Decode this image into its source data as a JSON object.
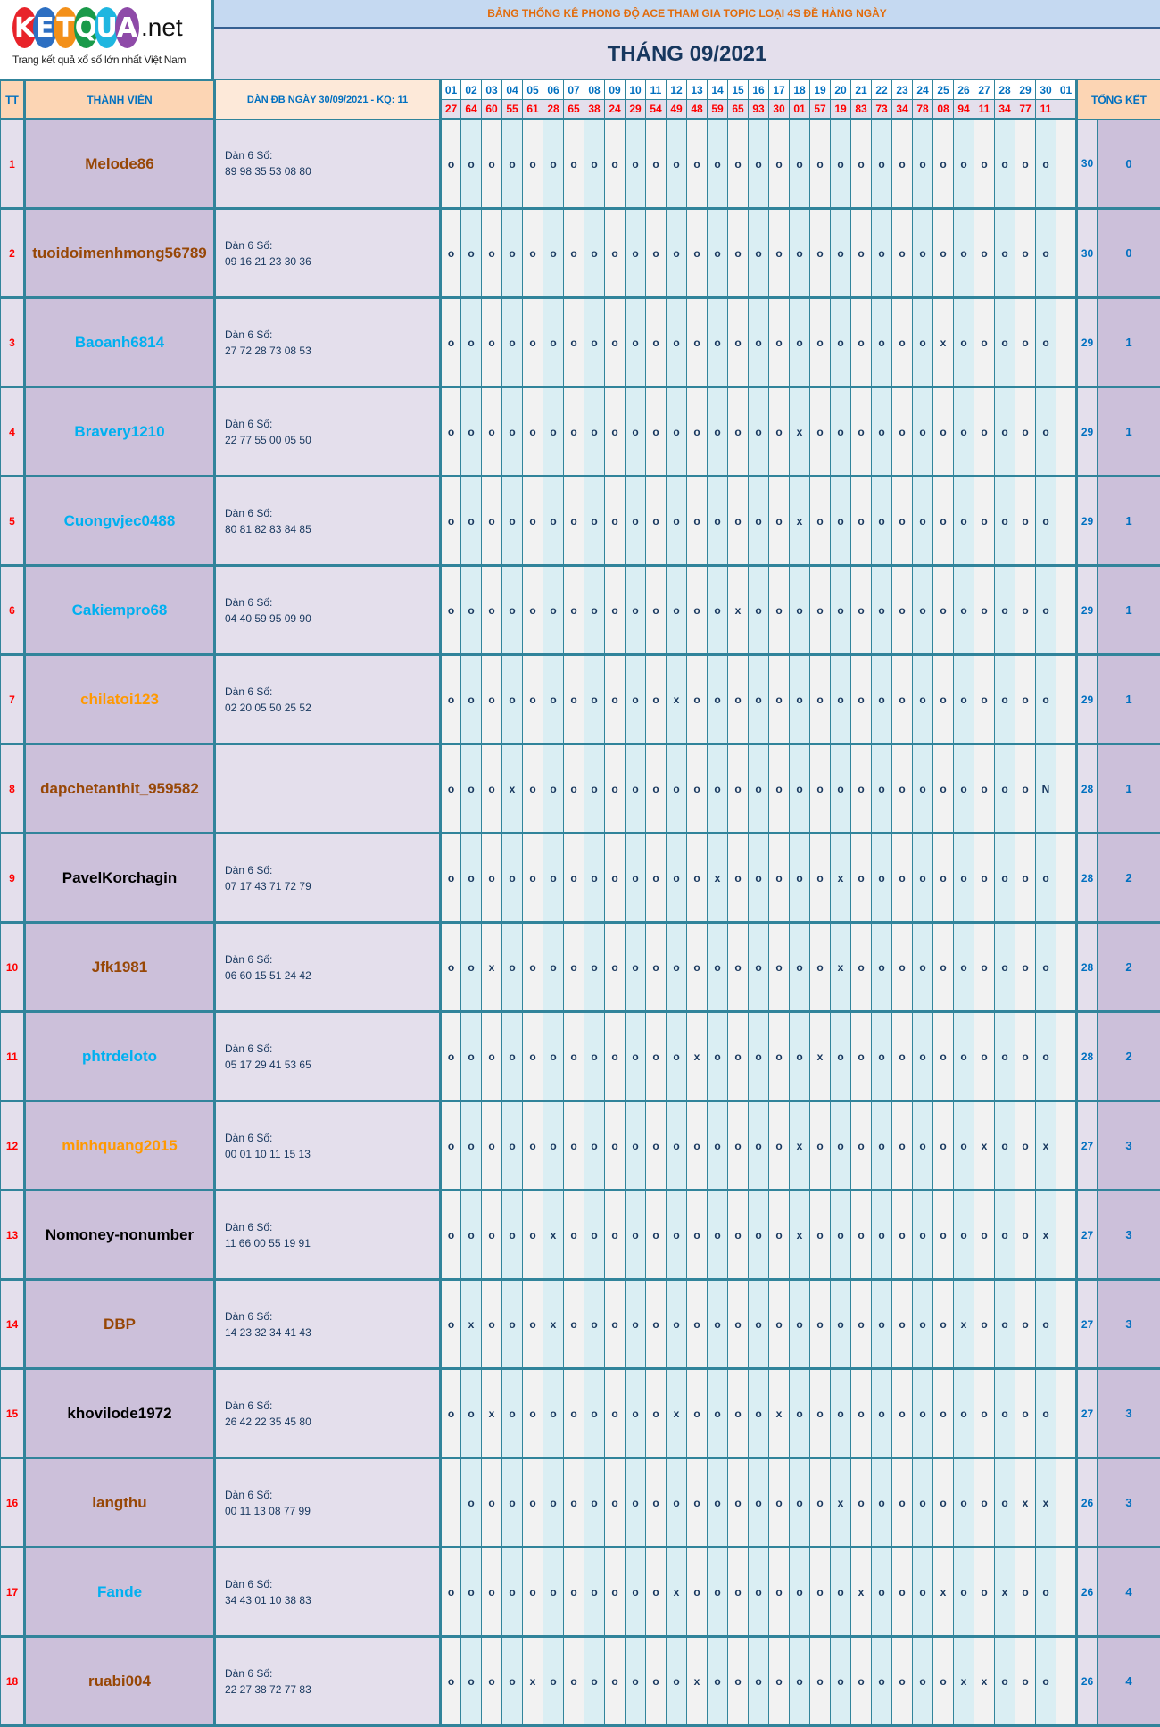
{
  "logo": {
    "letters": [
      "K",
      "E",
      "T",
      "Q",
      "U",
      "A"
    ],
    "colors": [
      "#e8232a",
      "#2d6fc2",
      "#f39019",
      "#1a9a4a",
      "#1fb6e0",
      "#8e4aa8"
    ],
    "suffix": ".net",
    "tagline": "Trang kết quả xổ số lớn nhất Việt Nam"
  },
  "header": {
    "title": "BẢNG THỐNG KÊ PHONG ĐỘ ACE THAM GIA TOPIC LOẠI 4S ĐỀ HÀNG NGÀY",
    "month": "THÁNG 09/2021"
  },
  "columns": {
    "tt": "TT",
    "member": "THÀNH VIÊN",
    "dan": "DÀN ĐB NGÀY 30/09/2021 - KQ: 11",
    "summary": "TỔNG KẾT"
  },
  "days": [
    "01",
    "02",
    "03",
    "04",
    "05",
    "06",
    "07",
    "08",
    "09",
    "10",
    "11",
    "12",
    "13",
    "14",
    "15",
    "16",
    "17",
    "18",
    "19",
    "20",
    "21",
    "22",
    "23",
    "24",
    "25",
    "26",
    "27",
    "28",
    "29",
    "30",
    "01"
  ],
  "results": [
    "27",
    "64",
    "60",
    "55",
    "61",
    "28",
    "65",
    "38",
    "24",
    "29",
    "54",
    "49",
    "48",
    "59",
    "65",
    "93",
    "30",
    "01",
    "57",
    "19",
    "83",
    "73",
    "34",
    "78",
    "08",
    "94",
    "11",
    "34",
    "77",
    "11",
    ""
  ],
  "colors": {
    "border": "#31849b",
    "brown": "#974706",
    "cyan": "#00b0f0",
    "orange": "#ff9900",
    "black": "#000000",
    "tt_red": "#ff0000",
    "count_blue": "#0070c0"
  },
  "rows": [
    {
      "tt": "1",
      "name": "Melode86",
      "name_color": "#974706",
      "dan_label": "Dàn 6 Số:",
      "dan_numbers": "89 98 35 53 08 80",
      "marks": [
        "o",
        "o",
        "o",
        "o",
        "o",
        "o",
        "o",
        "o",
        "o",
        "o",
        "o",
        "o",
        "o",
        "o",
        "o",
        "o",
        "o",
        "o",
        "o",
        "o",
        "o",
        "o",
        "o",
        "o",
        "o",
        "o",
        "o",
        "o",
        "o",
        "o",
        ""
      ],
      "count": "30",
      "total": "0"
    },
    {
      "tt": "2",
      "name": "tuoidoimenhmong56789",
      "name_color": "#974706",
      "dan_label": "Dàn 6 Số:",
      "dan_numbers": "09 16 21 23 30 36",
      "marks": [
        "o",
        "o",
        "o",
        "o",
        "o",
        "o",
        "o",
        "o",
        "o",
        "o",
        "o",
        "o",
        "o",
        "o",
        "o",
        "o",
        "o",
        "o",
        "o",
        "o",
        "o",
        "o",
        "o",
        "o",
        "o",
        "o",
        "o",
        "o",
        "o",
        "o",
        ""
      ],
      "count": "30",
      "total": "0"
    },
    {
      "tt": "3",
      "name": "Baoanh6814",
      "name_color": "#00b0f0",
      "dan_label": "Dàn 6 Số:",
      "dan_numbers": "27 72 28 73 08 53",
      "marks": [
        "o",
        "o",
        "o",
        "o",
        "o",
        "o",
        "o",
        "o",
        "o",
        "o",
        "o",
        "o",
        "o",
        "o",
        "o",
        "o",
        "o",
        "o",
        "o",
        "o",
        "o",
        "o",
        "o",
        "o",
        "x",
        "o",
        "o",
        "o",
        "o",
        "o",
        ""
      ],
      "count": "29",
      "total": "1"
    },
    {
      "tt": "4",
      "name": "Bravery1210",
      "name_color": "#00b0f0",
      "dan_label": "Dàn 6 Số:",
      "dan_numbers": "22 77 55 00 05 50",
      "marks": [
        "o",
        "o",
        "o",
        "o",
        "o",
        "o",
        "o",
        "o",
        "o",
        "o",
        "o",
        "o",
        "o",
        "o",
        "o",
        "o",
        "o",
        "x",
        "o",
        "o",
        "o",
        "o",
        "o",
        "o",
        "o",
        "o",
        "o",
        "o",
        "o",
        "o",
        ""
      ],
      "count": "29",
      "total": "1"
    },
    {
      "tt": "5",
      "name": "Cuongvjec0488",
      "name_color": "#00b0f0",
      "dan_label": "Dàn 6 Số:",
      "dan_numbers": "80 81 82 83 84 85",
      "marks": [
        "o",
        "o",
        "o",
        "o",
        "o",
        "o",
        "o",
        "o",
        "o",
        "o",
        "o",
        "o",
        "o",
        "o",
        "o",
        "o",
        "o",
        "x",
        "o",
        "o",
        "o",
        "o",
        "o",
        "o",
        "o",
        "o",
        "o",
        "o",
        "o",
        "o",
        ""
      ],
      "count": "29",
      "total": "1"
    },
    {
      "tt": "6",
      "name": "Cakiempro68",
      "name_color": "#00b0f0",
      "dan_label": "Dàn 6 Số:",
      "dan_numbers": "04 40 59 95 09 90",
      "marks": [
        "o",
        "o",
        "o",
        "o",
        "o",
        "o",
        "o",
        "o",
        "o",
        "o",
        "o",
        "o",
        "o",
        "o",
        "x",
        "o",
        "o",
        "o",
        "o",
        "o",
        "o",
        "o",
        "o",
        "o",
        "o",
        "o",
        "o",
        "o",
        "o",
        "o",
        ""
      ],
      "count": "29",
      "total": "1"
    },
    {
      "tt": "7",
      "name": "chilatoi123",
      "name_color": "#ff9900",
      "dan_label": "Dàn 6 Số:",
      "dan_numbers": "02 20 05 50 25 52",
      "marks": [
        "o",
        "o",
        "o",
        "o",
        "o",
        "o",
        "o",
        "o",
        "o",
        "o",
        "o",
        "x",
        "o",
        "o",
        "o",
        "o",
        "o",
        "o",
        "o",
        "o",
        "o",
        "o",
        "o",
        "o",
        "o",
        "o",
        "o",
        "o",
        "o",
        "o",
        ""
      ],
      "count": "29",
      "total": "1"
    },
    {
      "tt": "8",
      "name": "dapchetanthit_959582",
      "name_color": "#974706",
      "dan_label": "",
      "dan_numbers": "",
      "marks": [
        "o",
        "o",
        "o",
        "x",
        "o",
        "o",
        "o",
        "o",
        "o",
        "o",
        "o",
        "o",
        "o",
        "o",
        "o",
        "o",
        "o",
        "o",
        "o",
        "o",
        "o",
        "o",
        "o",
        "o",
        "o",
        "o",
        "o",
        "o",
        "o",
        "N",
        ""
      ],
      "count": "28",
      "total": "1"
    },
    {
      "tt": "9",
      "name": "PavelKorchagin",
      "name_color": "#000000",
      "dan_label": "Dàn 6 Số:",
      "dan_numbers": "07 17 43 71 72 79",
      "marks": [
        "o",
        "o",
        "o",
        "o",
        "o",
        "o",
        "o",
        "o",
        "o",
        "o",
        "o",
        "o",
        "o",
        "x",
        "o",
        "o",
        "o",
        "o",
        "o",
        "x",
        "o",
        "o",
        "o",
        "o",
        "o",
        "o",
        "o",
        "o",
        "o",
        "o",
        ""
      ],
      "count": "28",
      "total": "2"
    },
    {
      "tt": "10",
      "name": "Jfk1981",
      "name_color": "#974706",
      "dan_label": "Dàn 6 Số:",
      "dan_numbers": "06 60 15 51 24 42",
      "marks": [
        "o",
        "o",
        "x",
        "o",
        "o",
        "o",
        "o",
        "o",
        "o",
        "o",
        "o",
        "o",
        "o",
        "o",
        "o",
        "o",
        "o",
        "o",
        "o",
        "x",
        "o",
        "o",
        "o",
        "o",
        "o",
        "o",
        "o",
        "o",
        "o",
        "o",
        ""
      ],
      "count": "28",
      "total": "2"
    },
    {
      "tt": "11",
      "name": "phtrdeloto",
      "name_color": "#00b0f0",
      "dan_label": "Dàn 6 Số:",
      "dan_numbers": "05 17 29 41 53 65",
      "marks": [
        "o",
        "o",
        "o",
        "o",
        "o",
        "o",
        "o",
        "o",
        "o",
        "o",
        "o",
        "o",
        "x",
        "o",
        "o",
        "o",
        "o",
        "o",
        "x",
        "o",
        "o",
        "o",
        "o",
        "o",
        "o",
        "o",
        "o",
        "o",
        "o",
        "o",
        ""
      ],
      "count": "28",
      "total": "2"
    },
    {
      "tt": "12",
      "name": "minhquang2015",
      "name_color": "#ff9900",
      "dan_label": "Dàn 6 Số:",
      "dan_numbers": "00 01 10 11 15 13",
      "marks": [
        "o",
        "o",
        "o",
        "o",
        "o",
        "o",
        "o",
        "o",
        "o",
        "o",
        "o",
        "o",
        "o",
        "o",
        "o",
        "o",
        "o",
        "x",
        "o",
        "o",
        "o",
        "o",
        "o",
        "o",
        "o",
        "o",
        "x",
        "o",
        "o",
        "x",
        ""
      ],
      "count": "27",
      "total": "3"
    },
    {
      "tt": "13",
      "name": "Nomoney-nonumber",
      "name_color": "#000000",
      "dan_label": "Dàn 6 Số:",
      "dan_numbers": "11 66 00 55 19 91",
      "marks": [
        "o",
        "o",
        "o",
        "o",
        "o",
        "x",
        "o",
        "o",
        "o",
        "o",
        "o",
        "o",
        "o",
        "o",
        "o",
        "o",
        "o",
        "x",
        "o",
        "o",
        "o",
        "o",
        "o",
        "o",
        "o",
        "o",
        "o",
        "o",
        "o",
        "x",
        ""
      ],
      "count": "27",
      "total": "3"
    },
    {
      "tt": "14",
      "name": "DBP",
      "name_color": "#974706",
      "dan_label": "Dàn 6 Số:",
      "dan_numbers": "14 23 32 34 41 43",
      "marks": [
        "o",
        "x",
        "o",
        "o",
        "o",
        "x",
        "o",
        "o",
        "o",
        "o",
        "o",
        "o",
        "o",
        "o",
        "o",
        "o",
        "o",
        "o",
        "o",
        "o",
        "o",
        "o",
        "o",
        "o",
        "o",
        "x",
        "o",
        "o",
        "o",
        "o",
        ""
      ],
      "count": "27",
      "total": "3"
    },
    {
      "tt": "15",
      "name": "khovilode1972",
      "name_color": "#000000",
      "dan_label": "Dàn 6 Số:",
      "dan_numbers": "26 42 22 35 45 80",
      "marks": [
        "o",
        "o",
        "x",
        "o",
        "o",
        "o",
        "o",
        "o",
        "o",
        "o",
        "o",
        "x",
        "o",
        "o",
        "o",
        "o",
        "x",
        "o",
        "o",
        "o",
        "o",
        "o",
        "o",
        "o",
        "o",
        "o",
        "o",
        "o",
        "o",
        "o",
        ""
      ],
      "count": "27",
      "total": "3"
    },
    {
      "tt": "16",
      "name": "langthu",
      "name_color": "#974706",
      "dan_label": "Dàn 6 Số:",
      "dan_numbers": "00 11 13 08 77 99",
      "marks": [
        "",
        "o",
        "o",
        "o",
        "o",
        "o",
        "o",
        "o",
        "o",
        "o",
        "o",
        "o",
        "o",
        "o",
        "o",
        "o",
        "o",
        "o",
        "o",
        "x",
        "o",
        "o",
        "o",
        "o",
        "o",
        "o",
        "o",
        "o",
        "x",
        "x",
        ""
      ],
      "count": "26",
      "total": "3"
    },
    {
      "tt": "17",
      "name": "Fande",
      "name_color": "#00b0f0",
      "dan_label": "Dàn 6 Số:",
      "dan_numbers": "34 43 01 10 38 83",
      "marks": [
        "o",
        "o",
        "o",
        "o",
        "o",
        "o",
        "o",
        "o",
        "o",
        "o",
        "o",
        "x",
        "o",
        "o",
        "o",
        "o",
        "o",
        "o",
        "o",
        "o",
        "x",
        "o",
        "o",
        "o",
        "x",
        "o",
        "o",
        "x",
        "o",
        "o",
        ""
      ],
      "count": "26",
      "total": "4"
    },
    {
      "tt": "18",
      "name": "ruabi004",
      "name_color": "#974706",
      "dan_label": "Dàn 6 Số:",
      "dan_numbers": "22 27 38 72 77 83",
      "marks": [
        "o",
        "o",
        "o",
        "o",
        "x",
        "o",
        "o",
        "o",
        "o",
        "o",
        "o",
        "o",
        "x",
        "o",
        "o",
        "o",
        "o",
        "o",
        "o",
        "o",
        "o",
        "o",
        "o",
        "o",
        "o",
        "x",
        "x",
        "o",
        "o",
        "o",
        ""
      ],
      "count": "26",
      "total": "4"
    }
  ]
}
